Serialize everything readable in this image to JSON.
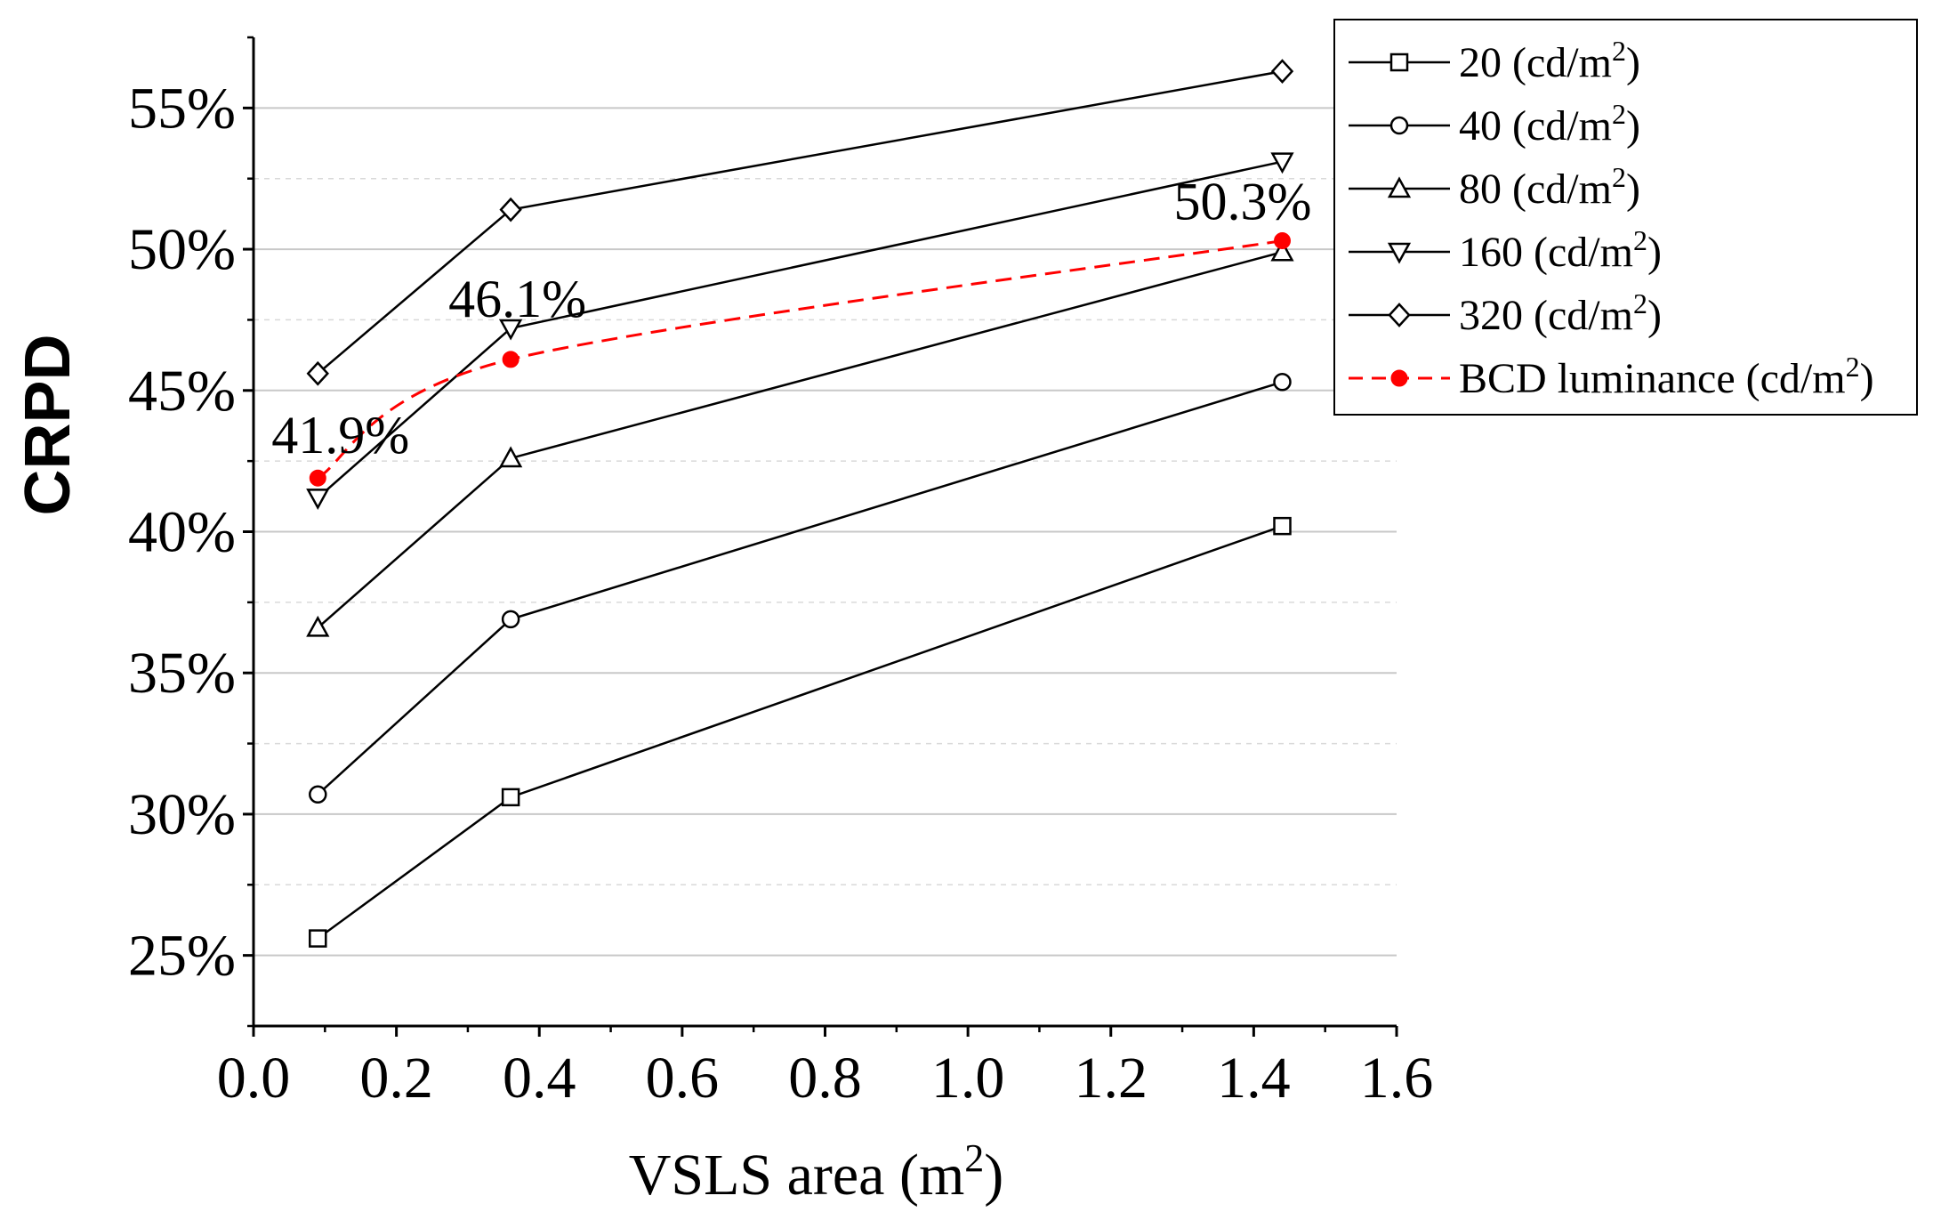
{
  "chart_data": {
    "type": "line",
    "xlabel": "VSLS area (m",
    "xlabel_sup": "2",
    "xlabel_end": ")",
    "ylabel": "CRPD",
    "xlim": [
      0.0,
      1.6
    ],
    "ylim": [
      22.5,
      57.5
    ],
    "x_ticks": [
      "0.0",
      "0.2",
      "0.4",
      "0.6",
      "0.8",
      "1.0",
      "1.2",
      "1.4",
      "1.6"
    ],
    "y_ticks": [
      "25%",
      "30%",
      "35%",
      "40%",
      "45%",
      "50%",
      "55%"
    ],
    "grid": true,
    "legend_position": "top-right",
    "series": [
      {
        "name": "20 (cd/m",
        "sup": "2",
        "end": ")",
        "marker": "square",
        "x": [
          0.09,
          0.36,
          1.44
        ],
        "values": [
          25.6,
          30.6,
          40.2
        ],
        "color": "#000000",
        "dashed": false
      },
      {
        "name": "40 (cd/m",
        "sup": "2",
        "end": ")",
        "marker": "circle",
        "x": [
          0.09,
          0.36,
          1.44
        ],
        "values": [
          30.7,
          36.9,
          45.3
        ],
        "color": "#000000",
        "dashed": false
      },
      {
        "name": "80 (cd/m",
        "sup": "2",
        "end": ")",
        "marker": "triangle-up",
        "x": [
          0.09,
          0.36,
          1.44
        ],
        "values": [
          36.6,
          42.6,
          49.9
        ],
        "color": "#000000",
        "dashed": false
      },
      {
        "name": "160 (cd/m",
        "sup": "2",
        "end": ")",
        "marker": "triangle-down",
        "x": [
          0.09,
          0.36,
          1.44
        ],
        "values": [
          41.2,
          47.2,
          53.1
        ],
        "color": "#000000",
        "dashed": false
      },
      {
        "name": "320 (cd/m",
        "sup": "2",
        "end": ")",
        "marker": "diamond",
        "x": [
          0.09,
          0.36,
          1.44
        ],
        "values": [
          45.6,
          51.4,
          56.3
        ],
        "color": "#000000",
        "dashed": false
      },
      {
        "name": "BCD luminance (cd/m",
        "sup": "2",
        "end": ")",
        "marker": "filled-circle",
        "x": [
          0.09,
          0.36,
          1.44
        ],
        "values": [
          41.9,
          46.1,
          50.3
        ],
        "color": "#ff0000",
        "dashed": true
      }
    ],
    "annotations": [
      {
        "text": "41.9%",
        "x": 0.09,
        "y": 41.9
      },
      {
        "text": "46.1%",
        "x": 0.36,
        "y": 46.1
      },
      {
        "text": "50.3%",
        "x": 1.44,
        "y": 50.3
      }
    ]
  }
}
